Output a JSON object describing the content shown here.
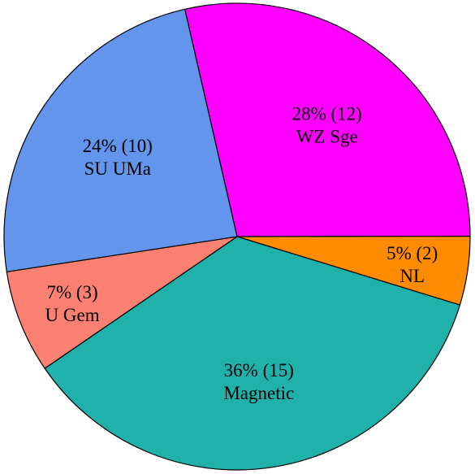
{
  "chart_data": {
    "type": "pie",
    "slices": [
      {
        "name": "WZ Sge",
        "count": 12,
        "percent": 28,
        "pct_label": "28% (12)",
        "color": "#ff00ff"
      },
      {
        "name": "NL",
        "count": 2,
        "percent": 5,
        "pct_label": "5% (2)",
        "color": "#ff8c00"
      },
      {
        "name": "Magnetic",
        "count": 15,
        "percent": 36,
        "pct_label": "36% (15)",
        "color": "#20b2aa"
      },
      {
        "name": "U Gem",
        "count": 3,
        "percent": 7,
        "pct_label": "7% (3)",
        "color": "#fa8072"
      },
      {
        "name": "SU UMa",
        "count": 10,
        "percent": 24,
        "pct_label": "24% (10)",
        "color": "#6495ed"
      }
    ]
  }
}
